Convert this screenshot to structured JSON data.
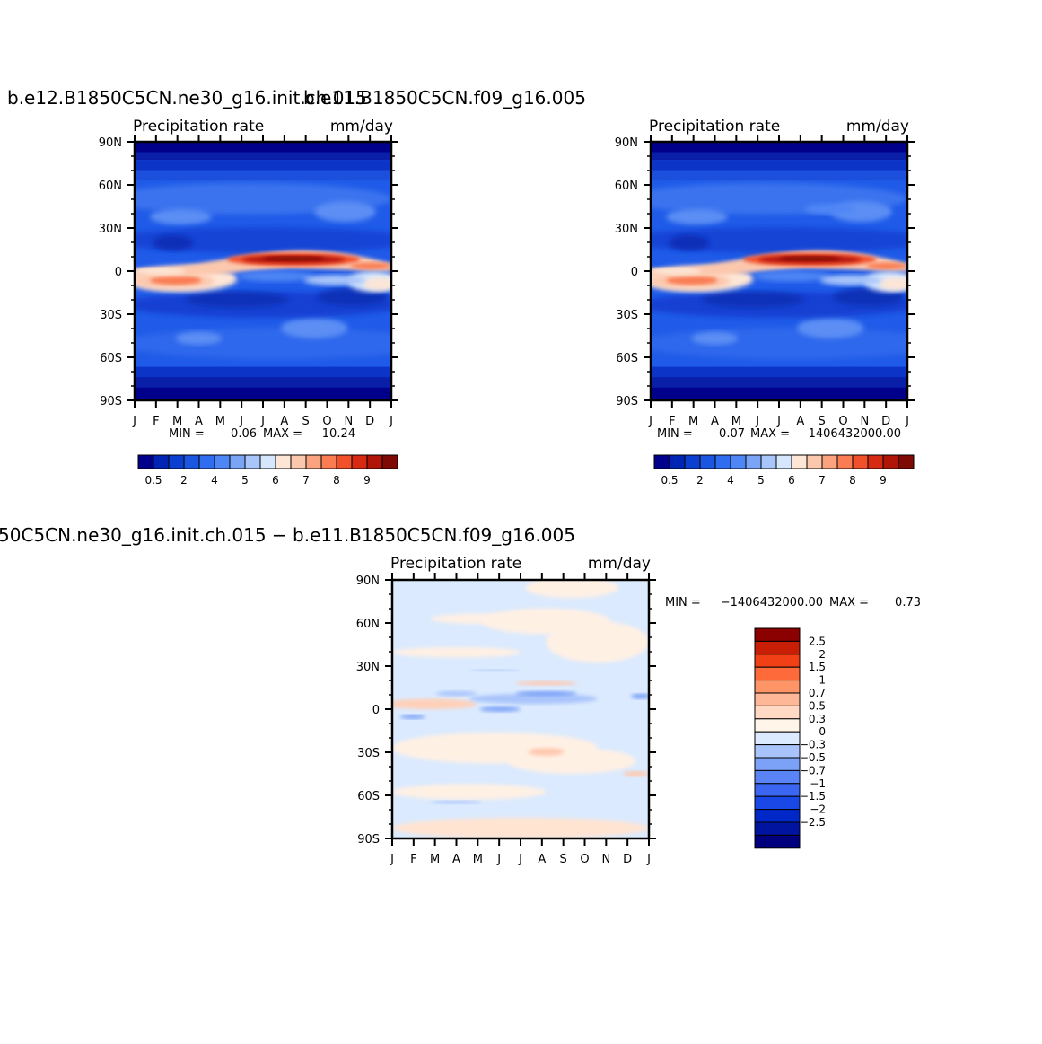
{
  "titles": {
    "top_left": "b.e12.B1850C5CN.ne30_g16.init.ch.015",
    "top_right": "b.e11.B1850C5CN.f09_g16.005",
    "bottom": "50C5CN.ne30_g16.init.ch.015 − b.e11.B1850C5CN.f09_g16.005"
  },
  "panel_labels": {
    "left_text": "Precipitation  rate",
    "right_text": "mm/day"
  },
  "colors": {
    "frame": "#000000",
    "abs_scale": [
      "#00008b",
      "#0025b5",
      "#0a3fd0",
      "#1a56e0",
      "#2f6cf0",
      "#4f86f5",
      "#7aa5f7",
      "#a9c6fa",
      "#d6e6fc",
      "#fde6d6",
      "#fcc8ad",
      "#fba37f",
      "#f97c52",
      "#f2502a",
      "#d62b12",
      "#b11508",
      "#7f0a05"
    ],
    "diff_scale": [
      "#00007f",
      "#0014a0",
      "#0028c8",
      "#1a48e6",
      "#3a66f2",
      "#5a84f6",
      "#7ca2f8",
      "#a8c4fb",
      "#dbeafe",
      "#fff5e8",
      "#ffd9c4",
      "#ffb897",
      "#ff9466",
      "#ff6a3a",
      "#f24016",
      "#c81e06",
      "#8b0000"
    ]
  },
  "chart_data": [
    {
      "type": "heatmap",
      "panel": "top_left",
      "title": "b.e12.B1850C5CN.ne30_g16.init.ch.015",
      "subtitle_left": "Precipitation  rate",
      "subtitle_right": "mm/day",
      "x": [
        "J",
        "F",
        "M",
        "A",
        "M",
        "J",
        "J",
        "A",
        "S",
        "O",
        "N",
        "D",
        "J"
      ],
      "y": [
        "90N",
        "60N",
        "30N",
        "0",
        "30S",
        "60S",
        "90S"
      ],
      "xlim": [
        0,
        12
      ],
      "ylim": [
        -90,
        90
      ],
      "stats": {
        "min_label": "MIN =",
        "min": "0.06",
        "max_label": "MAX =",
        "max": "10.24"
      },
      "colorbar_ticks": [
        "0.5",
        "2",
        "4",
        "5",
        "6",
        "7",
        "8",
        "9"
      ]
    },
    {
      "type": "heatmap",
      "panel": "top_right",
      "title": "b.e11.B1850C5CN.f09_g16.005",
      "subtitle_left": "Precipitation  rate",
      "subtitle_right": "mm/day",
      "x": [
        "J",
        "F",
        "M",
        "A",
        "M",
        "J",
        "J",
        "A",
        "S",
        "O",
        "N",
        "D",
        "J"
      ],
      "y": [
        "90N",
        "60N",
        "30N",
        "0",
        "30S",
        "60S",
        "90S"
      ],
      "xlim": [
        0,
        12
      ],
      "ylim": [
        -90,
        90
      ],
      "stats": {
        "min_label": "MIN =",
        "min": "0.07",
        "max_label": "MAX =",
        "max": "1406432000.00"
      },
      "colorbar_ticks": [
        "0.5",
        "2",
        "4",
        "5",
        "6",
        "7",
        "8",
        "9"
      ]
    },
    {
      "type": "heatmap",
      "panel": "bottom",
      "title": "50C5CN.ne30_g16.init.ch.015 − b.e11.B1850C5CN.f09_g16.005",
      "subtitle_left": "Precipitation  rate",
      "subtitle_right": "mm/day",
      "x": [
        "J",
        "F",
        "M",
        "A",
        "M",
        "J",
        "J",
        "A",
        "S",
        "O",
        "N",
        "D",
        "J"
      ],
      "y": [
        "90N",
        "60N",
        "30N",
        "0",
        "30S",
        "60S",
        "90S"
      ],
      "xlim": [
        0,
        12
      ],
      "ylim": [
        -90,
        90
      ],
      "stats": {
        "min_label": "MIN =",
        "min": "−1406432000.00",
        "max_label": "MAX =",
        "max": "0.73"
      },
      "colorbar_ticks": [
        "2.5",
        "2",
        "1.5",
        "1",
        "0.7",
        "0.5",
        "0.3",
        "0",
        "−0.3",
        "−0.5",
        "−0.7",
        "−1",
        "−1.5",
        "−2",
        "−2.5"
      ]
    }
  ]
}
